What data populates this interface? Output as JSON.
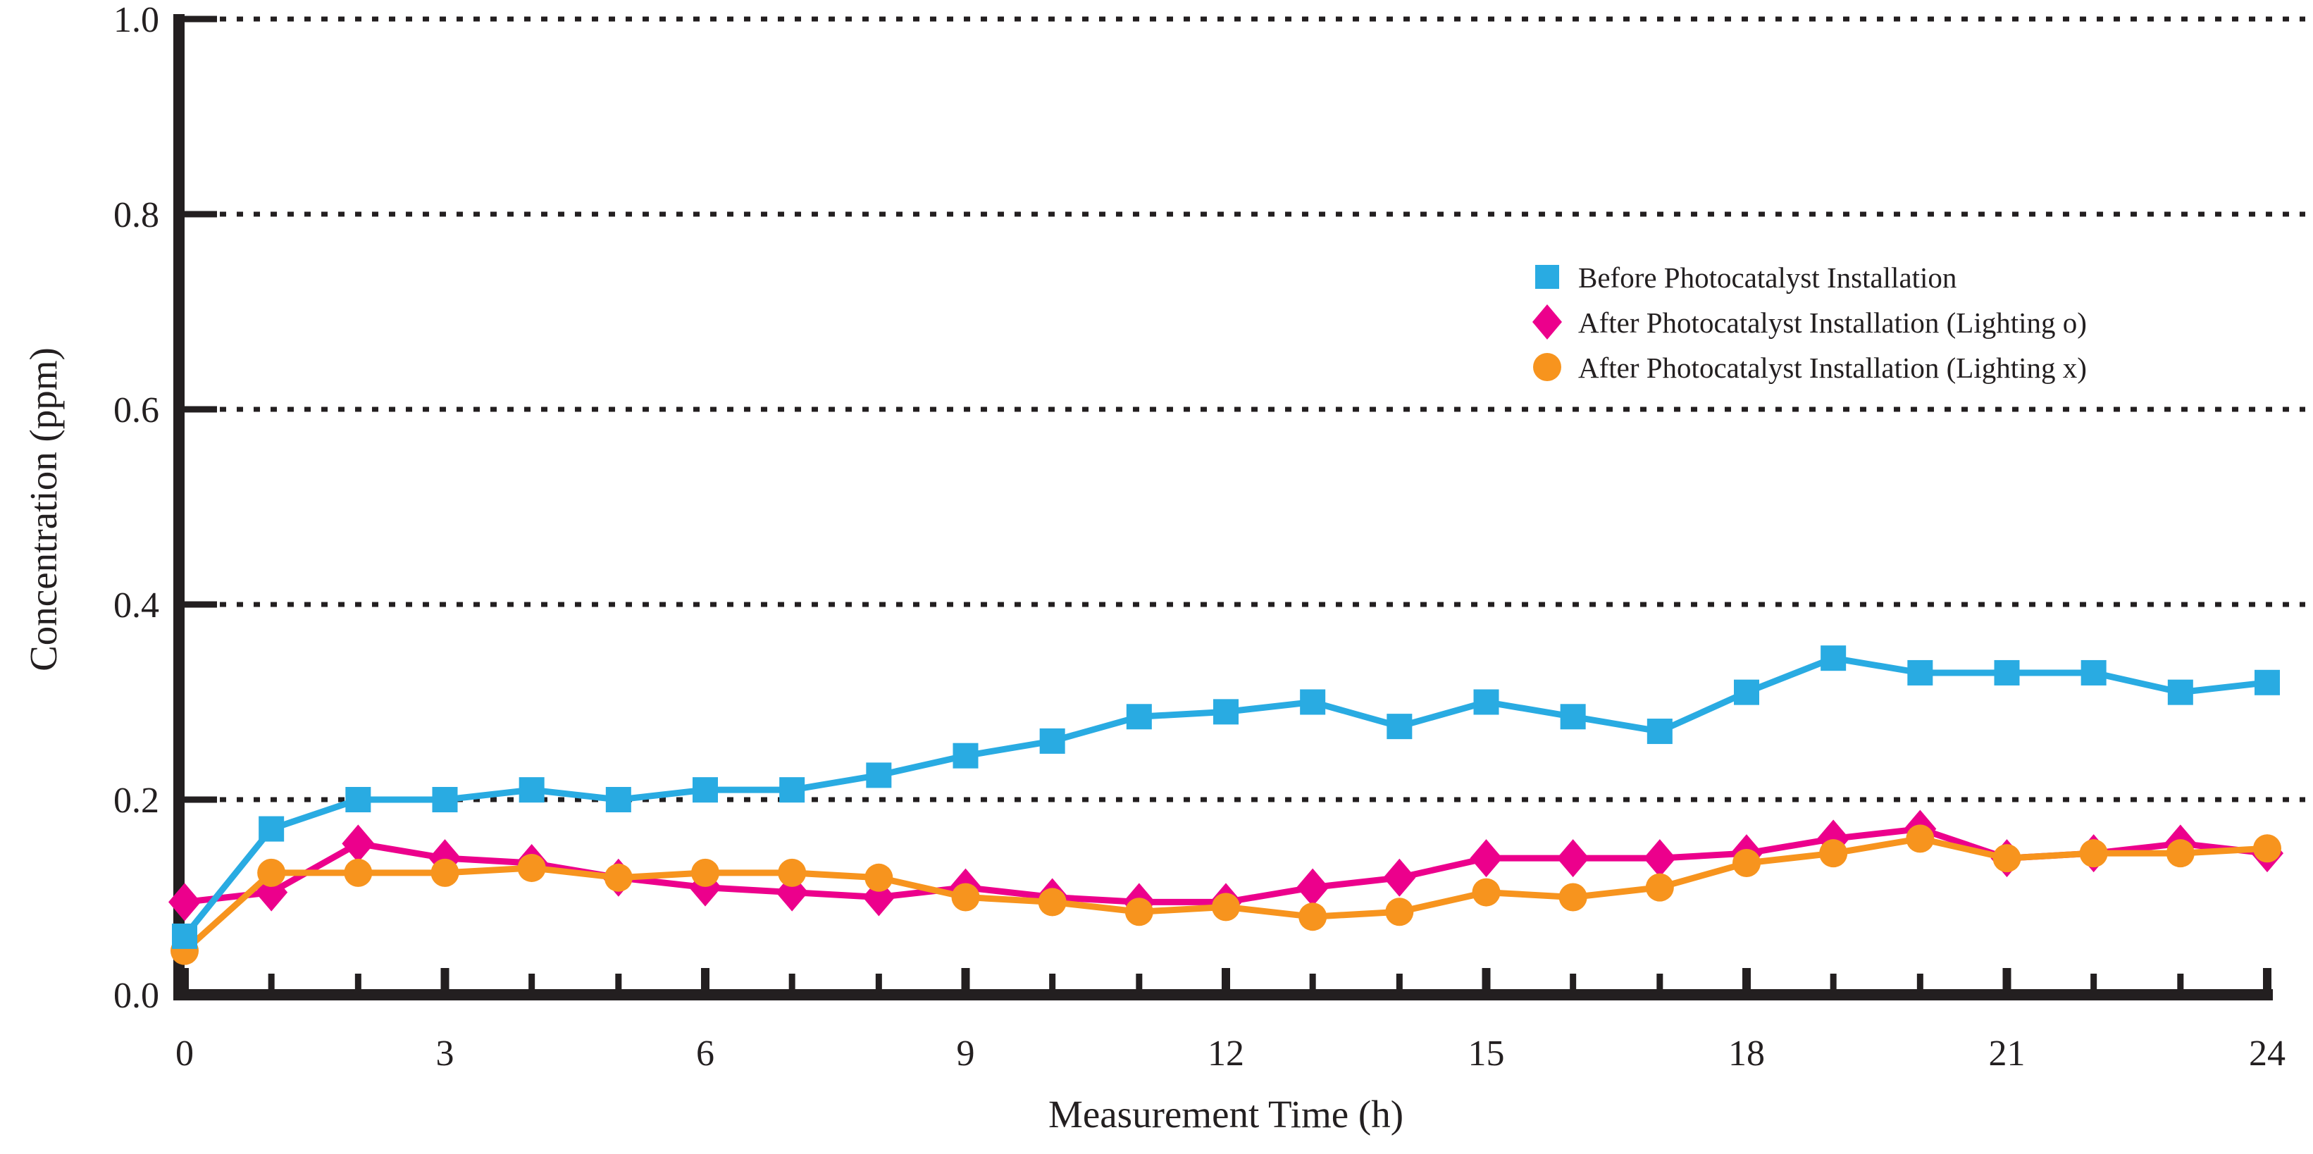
{
  "figure": {
    "xlabel": "Measurement Time (h)",
    "ylabel": "Concentration (ppm)",
    "background_color": "#ffffff",
    "axis_color": "#231f20"
  },
  "legend": {
    "position": "upper-right",
    "items": [
      {
        "label": "Before Photocatalyst Installation",
        "marker": "square",
        "color": "#29abe2"
      },
      {
        "label": "After Photocatalyst Installation (Lighting o)",
        "marker": "diamond",
        "color": "#ec008c"
      },
      {
        "label": "After Photocatalyst Installation (Lighting x)",
        "marker": "circle",
        "color": "#f7941e"
      }
    ]
  },
  "chart_data": {
    "type": "line",
    "title": "",
    "xlabel": "Measurement Time (h)",
    "ylabel": "Concentration (ppm)",
    "xlim": [
      0,
      24
    ],
    "ylim": [
      0.0,
      1.0
    ],
    "x_ticks_major": [
      0,
      3,
      6,
      9,
      12,
      15,
      18,
      21,
      24
    ],
    "x_ticks_minor_every": 1,
    "y_ticks": [
      0.0,
      0.2,
      0.4,
      0.6,
      0.8,
      1.0
    ],
    "y_tick_labels": [
      "0.0",
      "0.2",
      "0.4",
      "0.6",
      "0.8",
      "1.0"
    ],
    "grid": "horizontal-dotted",
    "x": [
      0,
      1,
      2,
      3,
      4,
      5,
      6,
      7,
      8,
      9,
      10,
      11,
      12,
      13,
      14,
      15,
      16,
      17,
      18,
      19,
      20,
      21,
      22,
      23,
      24
    ],
    "series": [
      {
        "name": "Before Photocatalyst Installation",
        "marker": "square",
        "color": "#29abe2",
        "values": [
          0.06,
          0.17,
          0.2,
          0.2,
          0.21,
          0.2,
          0.21,
          0.21,
          0.225,
          0.245,
          0.26,
          0.285,
          0.29,
          0.3,
          0.275,
          0.3,
          0.285,
          0.27,
          0.31,
          0.345,
          0.33,
          0.33,
          0.33,
          0.31,
          0.32
        ]
      },
      {
        "name": "After Photocatalyst Installation (Lighting o)",
        "marker": "diamond",
        "color": "#ec008c",
        "values": [
          0.095,
          0.105,
          0.155,
          0.14,
          0.135,
          0.12,
          0.11,
          0.105,
          0.1,
          0.11,
          0.1,
          0.095,
          0.095,
          0.11,
          0.12,
          0.14,
          0.14,
          0.14,
          0.145,
          0.16,
          0.17,
          0.14,
          0.145,
          0.155,
          0.145
        ]
      },
      {
        "name": "After Photocatalyst Installation (Lighting x)",
        "marker": "circle",
        "color": "#f7941e",
        "values": [
          0.045,
          0.125,
          0.125,
          0.125,
          0.13,
          0.12,
          0.125,
          0.125,
          0.12,
          0.1,
          0.095,
          0.085,
          0.09,
          0.08,
          0.085,
          0.105,
          0.1,
          0.11,
          0.135,
          0.145,
          0.16,
          0.14,
          0.145,
          0.145,
          0.15
        ]
      }
    ]
  }
}
